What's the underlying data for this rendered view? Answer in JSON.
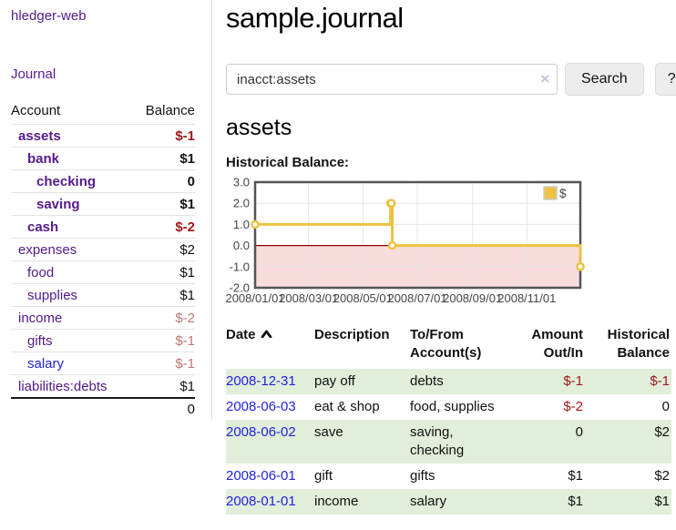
{
  "colors": {
    "link_purple": "#551a8b",
    "link_blue": "#2323dd",
    "negative_strong": "#a21717",
    "negative_soft": "#c17676",
    "row_shade_green": "#e1eeda",
    "button_bg": "#ededed",
    "chart_line_gold": "#edc240",
    "chart_negative_area": "#f9dcdc",
    "chart_zero_line": "#8b0000",
    "chart_border": "#545454"
  },
  "sidebar": {
    "brand": "hledger-web",
    "journal_label": "Journal",
    "columns": {
      "account": "Account",
      "balance": "Balance"
    },
    "accounts": [
      {
        "name": "assets",
        "level": 1,
        "bold": true,
        "blue": false,
        "balance": "$-1",
        "balance_class": "neg"
      },
      {
        "name": "bank",
        "level": 2,
        "bold": true,
        "blue": false,
        "balance": "$1",
        "balance_class": ""
      },
      {
        "name": "checking",
        "level": 3,
        "bold": true,
        "blue": false,
        "balance": "0",
        "balance_class": ""
      },
      {
        "name": "saving",
        "level": 3,
        "bold": true,
        "blue": false,
        "balance": "$1",
        "balance_class": ""
      },
      {
        "name": "cash",
        "level": 2,
        "bold": true,
        "blue": false,
        "balance": "$-2",
        "balance_class": "neg"
      },
      {
        "name": "expenses",
        "level": 1,
        "bold": false,
        "blue": false,
        "balance": "$2",
        "balance_class": ""
      },
      {
        "name": "food",
        "level": 2,
        "bold": false,
        "blue": false,
        "balance": "$1",
        "balance_class": ""
      },
      {
        "name": "supplies",
        "level": 2,
        "bold": false,
        "blue": false,
        "balance": "$1",
        "balance_class": ""
      },
      {
        "name": "income",
        "level": 1,
        "bold": false,
        "blue": false,
        "balance": "$-2",
        "balance_class": "soft"
      },
      {
        "name": "gifts",
        "level": 2,
        "bold": false,
        "blue": false,
        "balance": "$-1",
        "balance_class": "soft"
      },
      {
        "name": "salary",
        "level": 2,
        "bold": false,
        "blue": true,
        "balance": "$-1",
        "balance_class": "soft"
      },
      {
        "name": "liabilities:debts",
        "level": 1,
        "bold": false,
        "blue": false,
        "balance": "$1",
        "balance_class": ""
      }
    ],
    "total": "0"
  },
  "header": {
    "title": "sample.journal"
  },
  "search": {
    "value": "inacct:assets",
    "clear_icon": "×",
    "button_label": "Search",
    "help_label": "?"
  },
  "account_page": {
    "title": "assets",
    "chart_label": "Historical Balance:"
  },
  "chart_data": {
    "type": "line",
    "title": "Historical Balance:",
    "steps": true,
    "xrange": [
      "2008-01-01",
      "2008-12-31"
    ],
    "ylim": [
      -2.0,
      3.0
    ],
    "yticks": [
      "3.0",
      "2.0",
      "1.0",
      "0.0",
      "-1.0",
      "-2.0"
    ],
    "ytick_values": [
      3,
      2,
      1,
      0,
      -1,
      -2
    ],
    "xticks": [
      "2008/01/01",
      "2008/03/01",
      "2008/05/01",
      "2008/07/01",
      "2008/09/01",
      "2008/11/01"
    ],
    "legend": {
      "label": "$",
      "position": "top-right"
    },
    "grid": true,
    "series": [
      {
        "name": "$",
        "color": "#edc240",
        "points": [
          [
            "2008-01-01",
            1
          ],
          [
            "2008-06-01",
            2
          ],
          [
            "2008-06-02",
            2
          ],
          [
            "2008-06-03",
            0
          ],
          [
            "2008-12-31",
            -1
          ]
        ]
      }
    ],
    "negative_area_fill": "#f9dcdc",
    "zero_line_color": "#8b0000"
  },
  "register": {
    "columns": [
      {
        "line1": "Date",
        "line2": ""
      },
      {
        "line1": "Description",
        "line2": ""
      },
      {
        "line1": "To/From",
        "line2": "Account(s)"
      },
      {
        "line1": "Amount",
        "line2": "Out/In"
      },
      {
        "line1": "Historical",
        "line2": "Balance"
      }
    ],
    "rows": [
      {
        "date": "2008-12-31",
        "description": "pay off",
        "accounts": "debts",
        "amount": "$-1",
        "amount_neg": true,
        "balance": "$-1",
        "balance_neg": true,
        "shaded": true
      },
      {
        "date": "2008-06-03",
        "description": "eat & shop",
        "accounts": "food, supplies",
        "amount": "$-2",
        "amount_neg": true,
        "balance": "0",
        "balance_neg": false,
        "shaded": false
      },
      {
        "date": "2008-06-02",
        "description": "save",
        "accounts": "saving, checking",
        "amount": "0",
        "amount_neg": false,
        "balance": "$2",
        "balance_neg": false,
        "shaded": true
      },
      {
        "date": "2008-06-01",
        "description": "gift",
        "accounts": "gifts",
        "amount": "$1",
        "amount_neg": false,
        "balance": "$2",
        "balance_neg": false,
        "shaded": false
      },
      {
        "date": "2008-01-01",
        "description": "income",
        "accounts": "salary",
        "amount": "$1",
        "amount_neg": false,
        "balance": "$1",
        "balance_neg": false,
        "shaded": true
      }
    ]
  }
}
